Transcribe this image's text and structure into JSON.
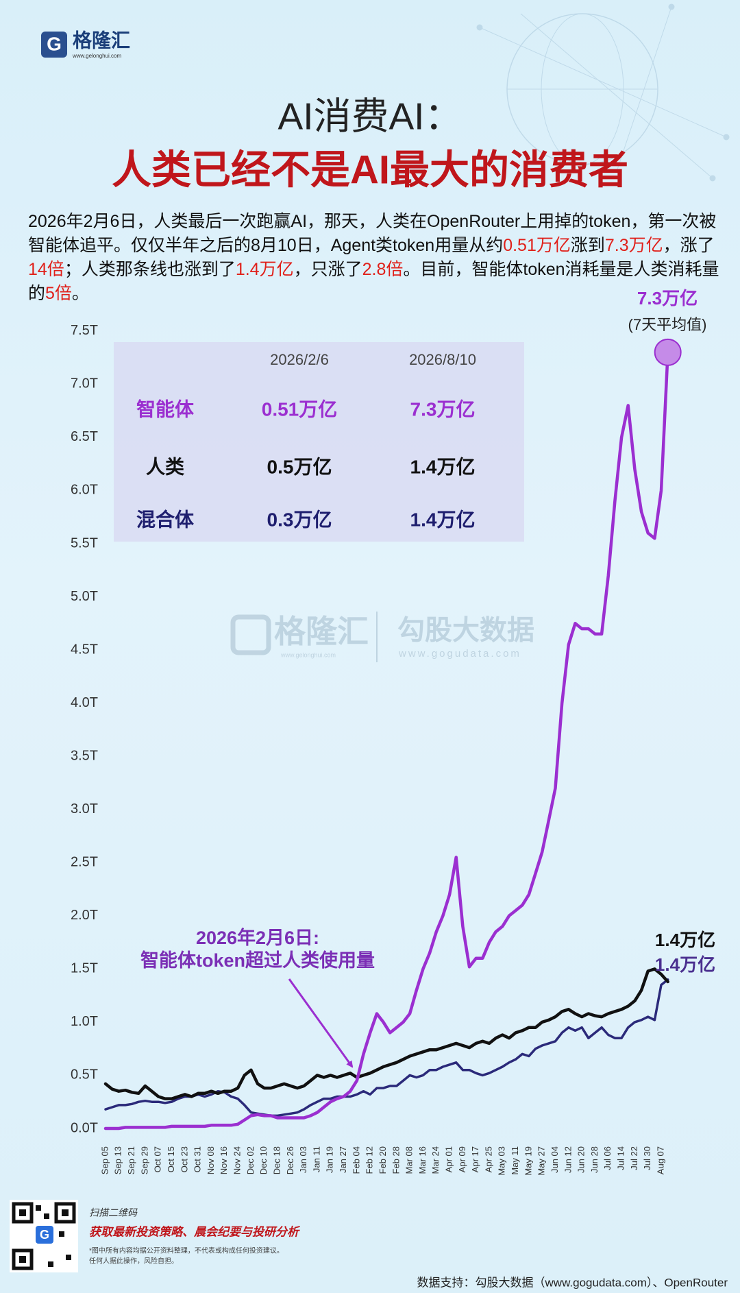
{
  "header": {
    "logo": "格隆汇",
    "site": "www.gelonghui.com"
  },
  "intro": [
    "2026年2月6日，人类最后一次跑赢AI，那天，人类在OpenRouter上用掉的token，第一次被智能体追平。仅仅半年之后的8月10日，Agent类token用量从约",
    "0.51万亿",
    "涨到",
    "7.3万亿",
    "，涨了",
    "14倍",
    "；人类那条线也涨到了",
    "1.4万亿",
    "，只涨了",
    "2.8倍",
    "。目前，智能体token消耗量是人类消耗量的",
    "5倍",
    "。"
  ],
  "chart_data": {
    "type": "line",
    "title": "AI消费AI：",
    "subtitle": "人类已经不是AI最大的消费者",
    "categories": [
      "Sep 05",
      null,
      "Sep 13",
      null,
      "Sep 21",
      null,
      "Sep 29",
      null,
      "Oct 07",
      null,
      "Oct 15",
      null,
      "Oct 23",
      null,
      "Oct 31",
      null,
      "Nov 08",
      null,
      "Nov 16",
      null,
      "Nov 24",
      null,
      "Dec 02",
      null,
      "Dec 10",
      null,
      "Dec 18",
      null,
      "Dec 26",
      null,
      "Jan 03",
      null,
      "Jan 11",
      null,
      "Jan 19",
      null,
      "Jan 27",
      null,
      "Feb 04",
      null,
      "Feb 12",
      null,
      "Feb 20",
      null,
      "Feb 28",
      null,
      "Mar 08",
      null,
      "Mar 16",
      null,
      "Mar 24",
      null,
      "Apr 01",
      null,
      "Apr 09",
      null,
      "Apr 17",
      null,
      "Apr 25",
      null,
      "May 03",
      null,
      "May 11",
      null,
      "May 19",
      null,
      "May 27",
      null,
      "Jun 04",
      null,
      "Jun 12",
      null,
      "Jun 20",
      null,
      "Jun 28",
      null,
      "Jul 06",
      null,
      "Jul 14",
      null,
      "Jul 22",
      null,
      "Jul 30",
      null,
      "Aug 07",
      null
    ],
    "series": [
      {
        "name": "智能体",
        "color": "#9b2fd0",
        "values": [
          0.0,
          0.0,
          0.0,
          0.01,
          0.01,
          0.01,
          0.01,
          0.01,
          0.01,
          0.01,
          0.02,
          0.02,
          0.02,
          0.02,
          0.02,
          0.02,
          0.03,
          0.03,
          0.03,
          0.03,
          0.04,
          0.08,
          0.12,
          0.13,
          0.12,
          0.12,
          0.1,
          0.1,
          0.1,
          0.1,
          0.1,
          0.12,
          0.15,
          0.2,
          0.25,
          0.28,
          0.3,
          0.35,
          0.45,
          0.7,
          0.9,
          1.08,
          1.0,
          0.9,
          0.95,
          1.0,
          1.08,
          1.3,
          1.5,
          1.65,
          1.85,
          2.0,
          2.2,
          2.55,
          1.9,
          1.52,
          1.6,
          1.6,
          1.75,
          1.85,
          1.9,
          2.0,
          2.05,
          2.1,
          2.2,
          2.4,
          2.6,
          2.9,
          3.2,
          4.0,
          4.55,
          4.75,
          4.7,
          4.7,
          4.65,
          4.65,
          5.2,
          5.9,
          6.5,
          6.8,
          6.2,
          5.8,
          5.6,
          5.55,
          6.0,
          7.3
        ]
      },
      {
        "name": "人类",
        "color": "#111111",
        "values": [
          0.42,
          0.37,
          0.35,
          0.36,
          0.34,
          0.33,
          0.4,
          0.35,
          0.3,
          0.28,
          0.28,
          0.3,
          0.32,
          0.3,
          0.33,
          0.33,
          0.35,
          0.33,
          0.35,
          0.35,
          0.38,
          0.5,
          0.55,
          0.42,
          0.38,
          0.38,
          0.4,
          0.42,
          0.4,
          0.38,
          0.4,
          0.45,
          0.5,
          0.48,
          0.5,
          0.48,
          0.5,
          0.52,
          0.48,
          0.5,
          0.52,
          0.55,
          0.58,
          0.6,
          0.62,
          0.65,
          0.68,
          0.7,
          0.72,
          0.74,
          0.74,
          0.76,
          0.78,
          0.8,
          0.78,
          0.76,
          0.8,
          0.82,
          0.8,
          0.85,
          0.88,
          0.85,
          0.9,
          0.92,
          0.95,
          0.95,
          1.0,
          1.02,
          1.05,
          1.1,
          1.12,
          1.08,
          1.05,
          1.08,
          1.06,
          1.05,
          1.08,
          1.1,
          1.12,
          1.15,
          1.2,
          1.3,
          1.48,
          1.5,
          1.45,
          1.38
        ]
      },
      {
        "name": "混合体",
        "color": "#2b2a7a",
        "values": [
          0.18,
          0.2,
          0.22,
          0.22,
          0.23,
          0.25,
          0.26,
          0.25,
          0.25,
          0.24,
          0.25,
          0.28,
          0.3,
          0.3,
          0.32,
          0.3,
          0.32,
          0.35,
          0.34,
          0.3,
          0.28,
          0.22,
          0.15,
          0.14,
          0.13,
          0.12,
          0.12,
          0.13,
          0.14,
          0.15,
          0.18,
          0.22,
          0.25,
          0.28,
          0.28,
          0.3,
          0.3,
          0.3,
          0.32,
          0.35,
          0.32,
          0.38,
          0.38,
          0.4,
          0.4,
          0.45,
          0.5,
          0.48,
          0.5,
          0.55,
          0.55,
          0.58,
          0.6,
          0.62,
          0.55,
          0.55,
          0.52,
          0.5,
          0.52,
          0.55,
          0.58,
          0.62,
          0.65,
          0.7,
          0.68,
          0.75,
          0.78,
          0.8,
          0.82,
          0.9,
          0.95,
          0.92,
          0.95,
          0.85,
          0.9,
          0.95,
          0.88,
          0.85,
          0.85,
          0.95,
          1.0,
          1.02,
          1.05,
          1.02,
          1.35,
          1.4
        ]
      }
    ],
    "ylim": [
      -0.1,
      7.6
    ],
    "yticks": [
      {
        "value": 0,
        "label": "0.0T"
      },
      {
        "value": 0.5,
        "label": "0.5T"
      },
      {
        "value": 1,
        "label": "1.0T"
      },
      {
        "value": 1.5,
        "label": "1.5T"
      },
      {
        "value": 2,
        "label": "2.0T"
      },
      {
        "value": 2.5,
        "label": "2.5T"
      },
      {
        "value": 3,
        "label": "3.0T"
      },
      {
        "value": 3.5,
        "label": "3.5T"
      },
      {
        "value": 4,
        "label": "4.0T"
      },
      {
        "value": 4.5,
        "label": "4.5T"
      },
      {
        "value": 5,
        "label": "5.0T"
      },
      {
        "value": 5.5,
        "label": "5.5T"
      },
      {
        "value": 6,
        "label": "6.0T"
      },
      {
        "value": 6.5,
        "label": "6.5T"
      },
      {
        "value": 7,
        "label": "7.0T"
      },
      {
        "value": 7.5,
        "label": "7.5T"
      }
    ],
    "annotations": {
      "agent_end": "7.3万亿",
      "agent_note": "(7天平均值)",
      "human_end": "1.4万亿",
      "hybrid_end": "1.4万亿",
      "callout": [
        "2026年2月6日:",
        "智能体token超过人类使用量"
      ]
    }
  },
  "table": {
    "columns": [
      "2026/2/6",
      "2026/8/10"
    ],
    "rows": [
      [
        "0.51万亿",
        "7.3万亿"
      ],
      [
        "0.5万亿",
        "1.4万亿"
      ],
      [
        "0.3万亿",
        "1.4万亿"
      ]
    ]
  },
  "watermark": {
    "logo": "格隆汇",
    "site": "www.gelonghui.com",
    "partner": "勾股大数据",
    "partner_site": "www.gogudata.com"
  },
  "footer": {
    "scan": "扫描二维码",
    "promo": "获取最新投资策略、晨会纪要与投研分析",
    "disclaimer": [
      "*图中所有内容均据公开资料整理，不代表或构成任何投资建议。",
      "任何人据此操作，风险自担。"
    ],
    "source": "数据支持：勾股大数据（www.gogudata.com）、OpenRouter"
  }
}
